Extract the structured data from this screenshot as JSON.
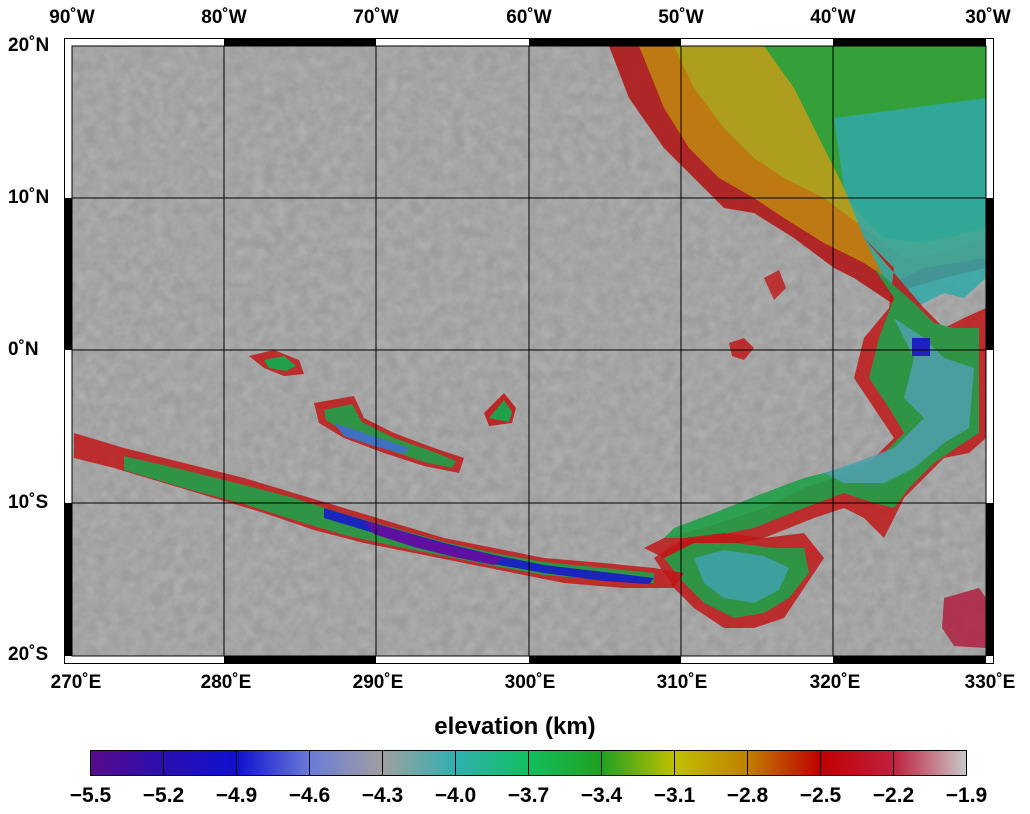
{
  "map": {
    "lon_labels_top": [
      "90˚W",
      "80˚W",
      "70˚W",
      "60˚W",
      "50˚W",
      "40˚W",
      "30˚W"
    ],
    "lon_labels_bottom": [
      "270˚E",
      "280˚E",
      "290˚E",
      "300˚E",
      "310˚E",
      "320˚E",
      "330˚E"
    ],
    "lat_labels": [
      "20˚N",
      "10˚N",
      "0˚N",
      "10˚S",
      "20˚S"
    ],
    "extent": {
      "lon_min_E": 270,
      "lon_max_E": 330,
      "lat_min": -20,
      "lat_max": 20
    },
    "grid_spacing_deg": 10,
    "basemap": "grey shaded relief with elevation colour overlay"
  },
  "colorbar": {
    "title": "elevation (km)",
    "tick_labels": [
      "−5.5",
      "−5.2",
      "−4.9",
      "−4.6",
      "−4.3",
      "−4.0",
      "−3.7",
      "−3.4",
      "−3.1",
      "−2.8",
      "−2.5",
      "−2.2",
      "−1.9"
    ],
    "range_km": [
      -5.5,
      -1.9
    ],
    "colors": [
      "#5a0a8c",
      "#2a0fb0",
      "#1010d0",
      "#6a7ad8",
      "#a0a0a0",
      "#30b0b0",
      "#10c060",
      "#20a020",
      "#c0c000",
      "#c08000",
      "#c00000",
      "#c02040",
      "#c8c8c8"
    ]
  }
}
